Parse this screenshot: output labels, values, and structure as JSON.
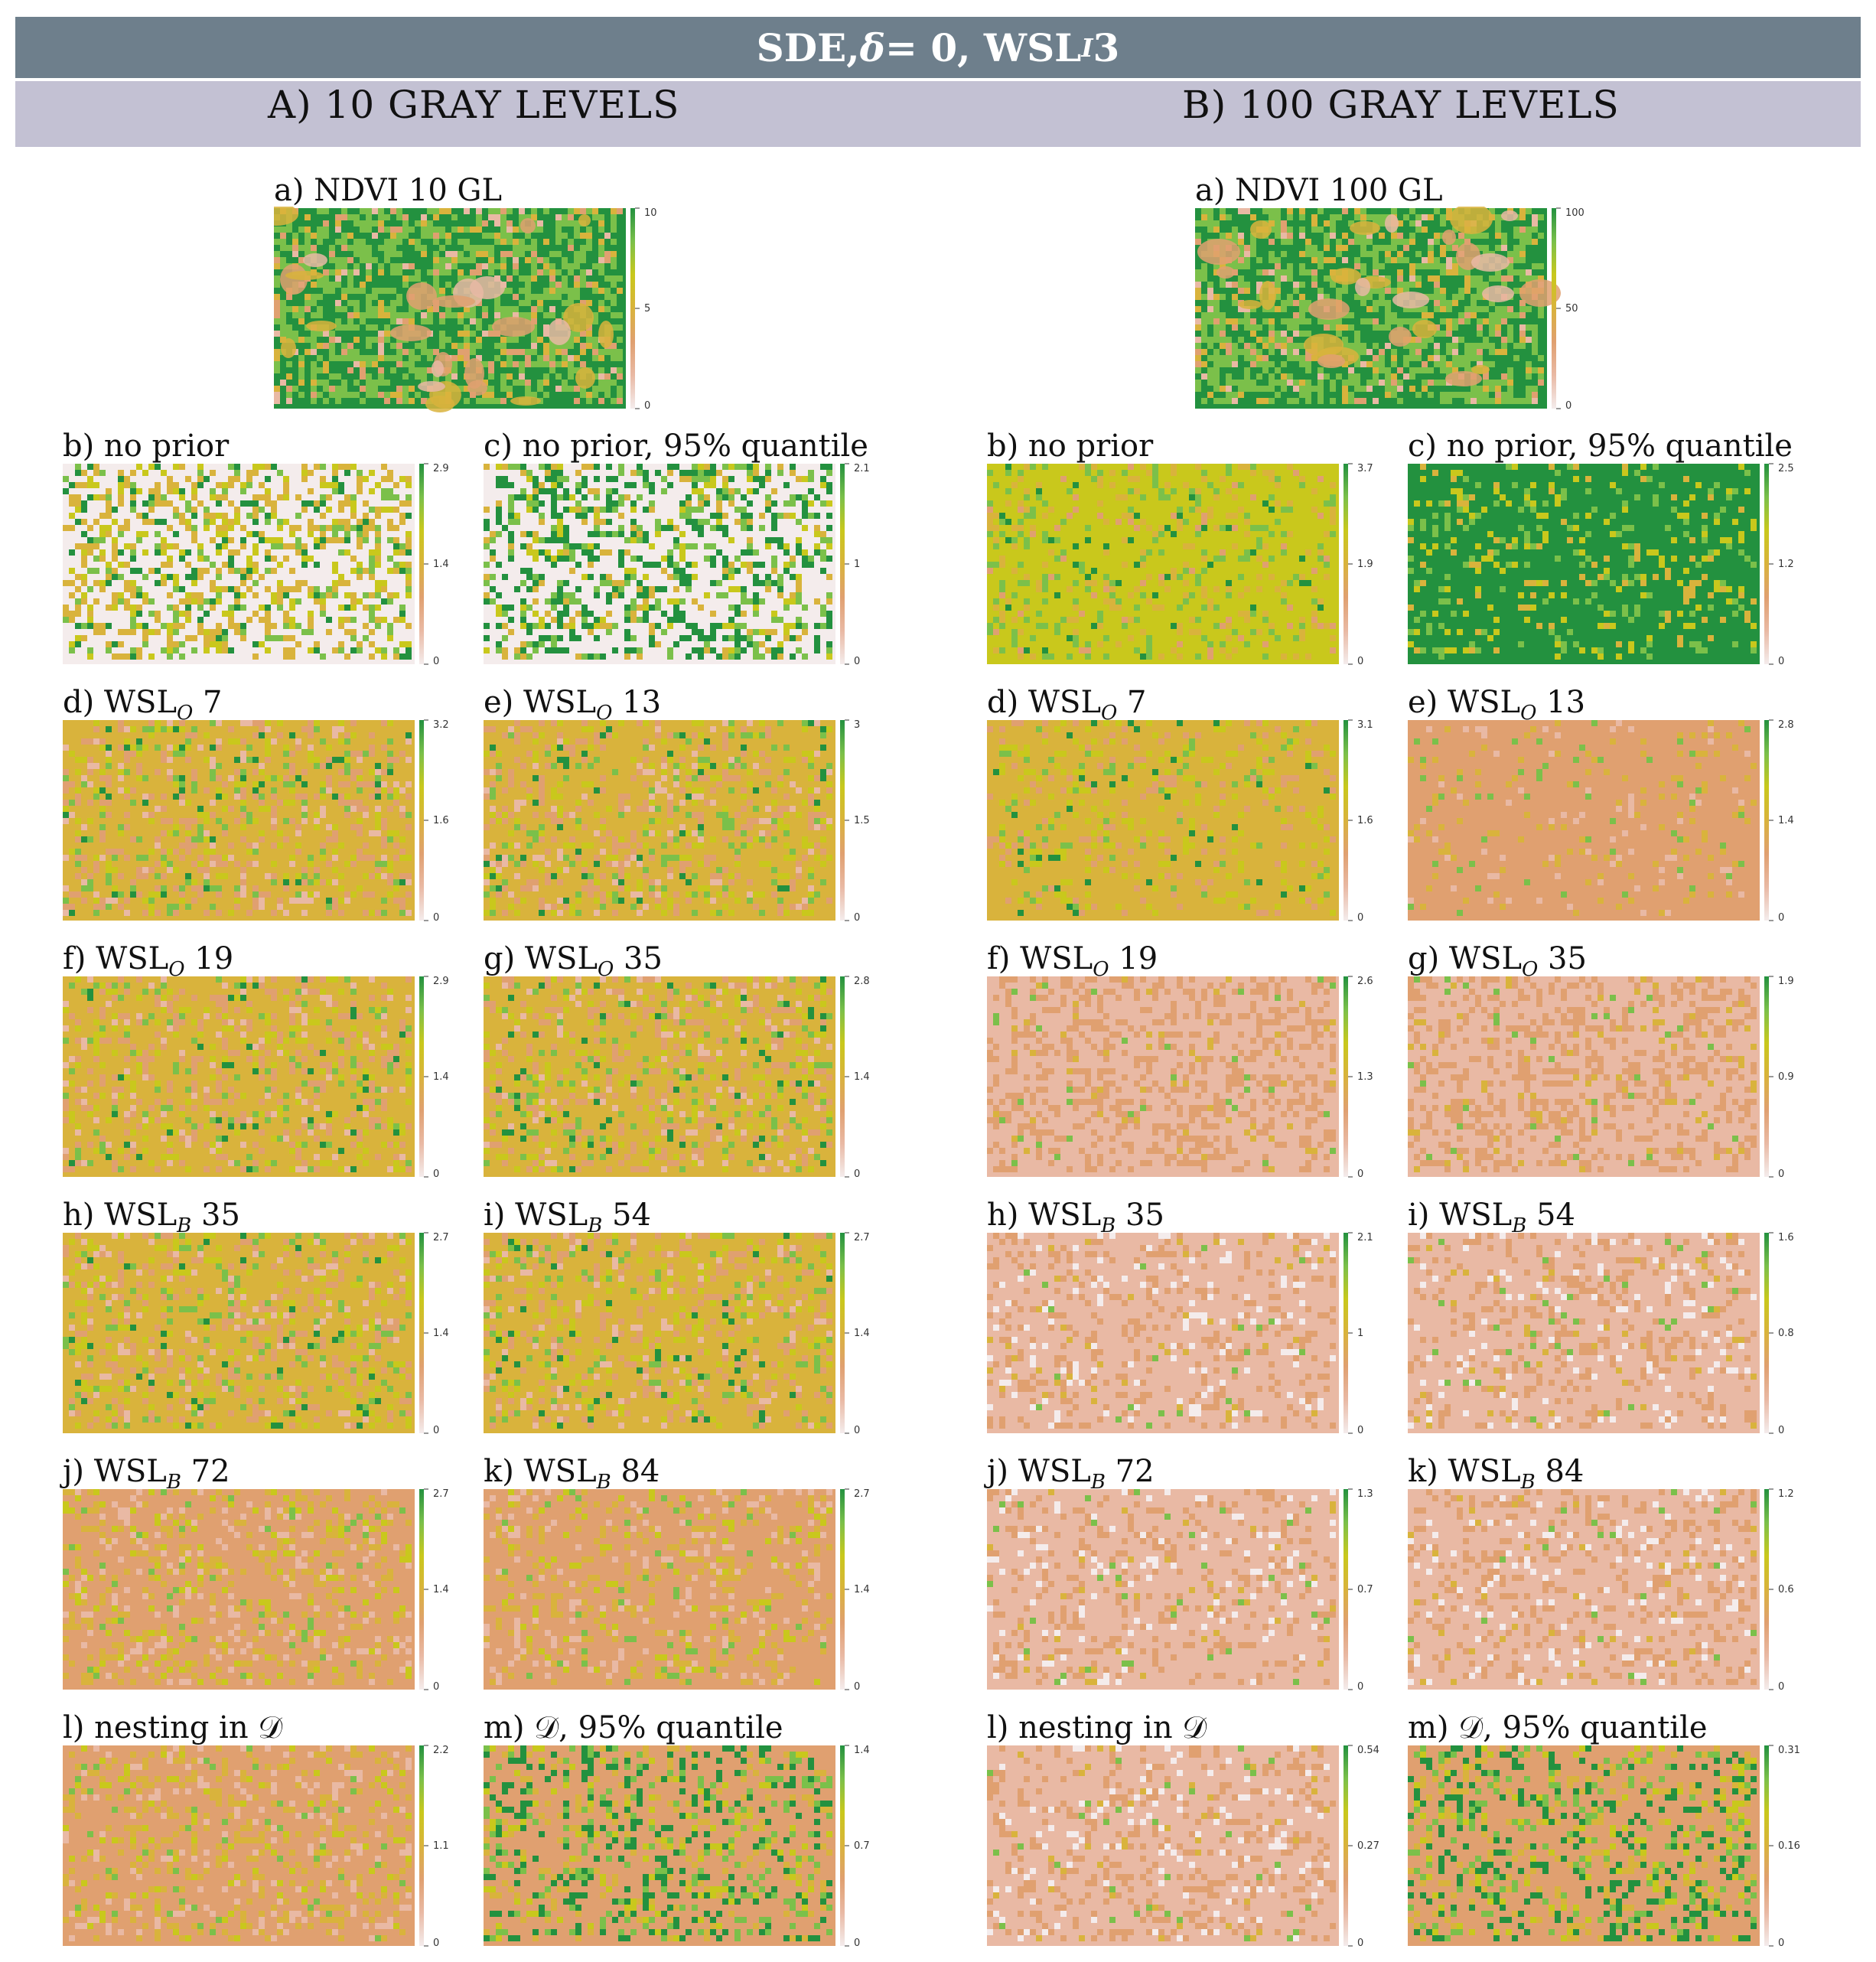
{
  "title": {
    "pre": "SDE, ",
    "delta": "δ",
    "mid": " = 0, WSL",
    "sub": "I",
    "post": " 3"
  },
  "columns": [
    {
      "title": "A) 10 GRAY LEVELS"
    },
    {
      "title": "B) 100 GRAY LEVELS"
    }
  ],
  "colormap": [
    "#f4ecec",
    "#e9b9a4",
    "#e0a070",
    "#d9b33c",
    "#c9c81c",
    "#7bc04a",
    "#23913f"
  ],
  "panels": [
    {
      "id": "A-a",
      "label": "a) NDVI 10 GL",
      "ticks": [
        "10",
        "5",
        "0"
      ],
      "style": "ndvi"
    },
    {
      "id": "A-b",
      "label": "b) no prior",
      "ticks": [
        "2.9",
        "1.4",
        "0"
      ],
      "style": "noprior"
    },
    {
      "id": "A-c",
      "label": "c) no prior, 95% quantile",
      "ticks": [
        "2.1",
        "1",
        "0"
      ],
      "style": "noprior95"
    },
    {
      "id": "A-d",
      "label": "d) WSL",
      "sub": "O",
      "suffix": " 7",
      "ticks": [
        "3.2",
        "1.6",
        "0"
      ],
      "style": "mixA"
    },
    {
      "id": "A-e",
      "label": "e) WSL",
      "sub": "O",
      "suffix": " 13",
      "ticks": [
        "3",
        "1.5",
        "0"
      ],
      "style": "mixA"
    },
    {
      "id": "A-f",
      "label": "f) WSL",
      "sub": "O",
      "suffix": " 19",
      "ticks": [
        "2.9",
        "1.4",
        "0"
      ],
      "style": "mixA"
    },
    {
      "id": "A-g",
      "label": "g) WSL",
      "sub": "O",
      "suffix": " 35",
      "ticks": [
        "2.8",
        "1.4",
        "0"
      ],
      "style": "mixA"
    },
    {
      "id": "A-h",
      "label": "h) WSL",
      "sub": "B",
      "suffix": " 35",
      "ticks": [
        "2.7",
        "1.4",
        "0"
      ],
      "style": "mixA"
    },
    {
      "id": "A-i",
      "label": "i) WSL",
      "sub": "B",
      "suffix": " 54",
      "ticks": [
        "2.7",
        "1.4",
        "0"
      ],
      "style": "mixA"
    },
    {
      "id": "A-j",
      "label": "j) WSL",
      "sub": "B",
      "suffix": " 72",
      "ticks": [
        "2.7",
        "1.4",
        "0"
      ],
      "style": "mixB"
    },
    {
      "id": "A-k",
      "label": "k) WSL",
      "sub": "B",
      "suffix": " 84",
      "ticks": [
        "2.7",
        "1.4",
        "0"
      ],
      "style": "mixB"
    },
    {
      "id": "A-l",
      "label": "l) nesting in 𝒟",
      "ticks": [
        "2.2",
        "1.1",
        "0"
      ],
      "style": "mixB"
    },
    {
      "id": "A-m",
      "label": "m) 𝒟, 95% quantile",
      "ticks": [
        "1.4",
        "0.7",
        "0"
      ],
      "style": "green95"
    },
    {
      "id": "B-a",
      "label": "a) NDVI 100 GL",
      "ticks": [
        "100",
        "50",
        "0"
      ],
      "style": "ndvi"
    },
    {
      "id": "B-b",
      "label": "b) no prior",
      "ticks": [
        "3.7",
        "1.9",
        "0"
      ],
      "style": "yellowgreen"
    },
    {
      "id": "B-c",
      "label": "c) no prior, 95% quantile",
      "ticks": [
        "2.5",
        "1.2",
        "0"
      ],
      "style": "darkgreen"
    },
    {
      "id": "B-d",
      "label": "d) WSL",
      "sub": "O",
      "suffix": " 7",
      "ticks": [
        "3.1",
        "1.6",
        "0"
      ],
      "style": "yellow"
    },
    {
      "id": "B-e",
      "label": "e) WSL",
      "sub": "O",
      "suffix": " 13",
      "ticks": [
        "2.8",
        "1.4",
        "0"
      ],
      "style": "orange"
    },
    {
      "id": "B-f",
      "label": "f) WSL",
      "sub": "O",
      "suffix": " 19",
      "ticks": [
        "2.6",
        "1.3",
        "0"
      ],
      "style": "salmon"
    },
    {
      "id": "B-g",
      "label": "g) WSL",
      "sub": "O",
      "suffix": " 35",
      "ticks": [
        "1.9",
        "0.9",
        "0"
      ],
      "style": "salmon"
    },
    {
      "id": "B-h",
      "label": "h) WSL",
      "sub": "B",
      "suffix": " 35",
      "ticks": [
        "2.1",
        "1",
        "0"
      ],
      "style": "pale"
    },
    {
      "id": "B-i",
      "label": "i) WSL",
      "sub": "B",
      "suffix": " 54",
      "ticks": [
        "1.6",
        "0.8",
        "0"
      ],
      "style": "pale"
    },
    {
      "id": "B-j",
      "label": "j) WSL",
      "sub": "B",
      "suffix": " 72",
      "ticks": [
        "1.3",
        "0.7",
        "0"
      ],
      "style": "pale"
    },
    {
      "id": "B-k",
      "label": "k) WSL",
      "sub": "B",
      "suffix": " 84",
      "ticks": [
        "1.2",
        "0.6",
        "0"
      ],
      "style": "pale"
    },
    {
      "id": "B-l",
      "label": "l) nesting in 𝒟",
      "ticks": [
        "0.54",
        "0.27",
        "0"
      ],
      "style": "pale"
    },
    {
      "id": "B-m",
      "label": "m) 𝒟, 95% quantile",
      "ticks": [
        "0.31",
        "0.16",
        "0"
      ],
      "style": "green95"
    }
  ]
}
